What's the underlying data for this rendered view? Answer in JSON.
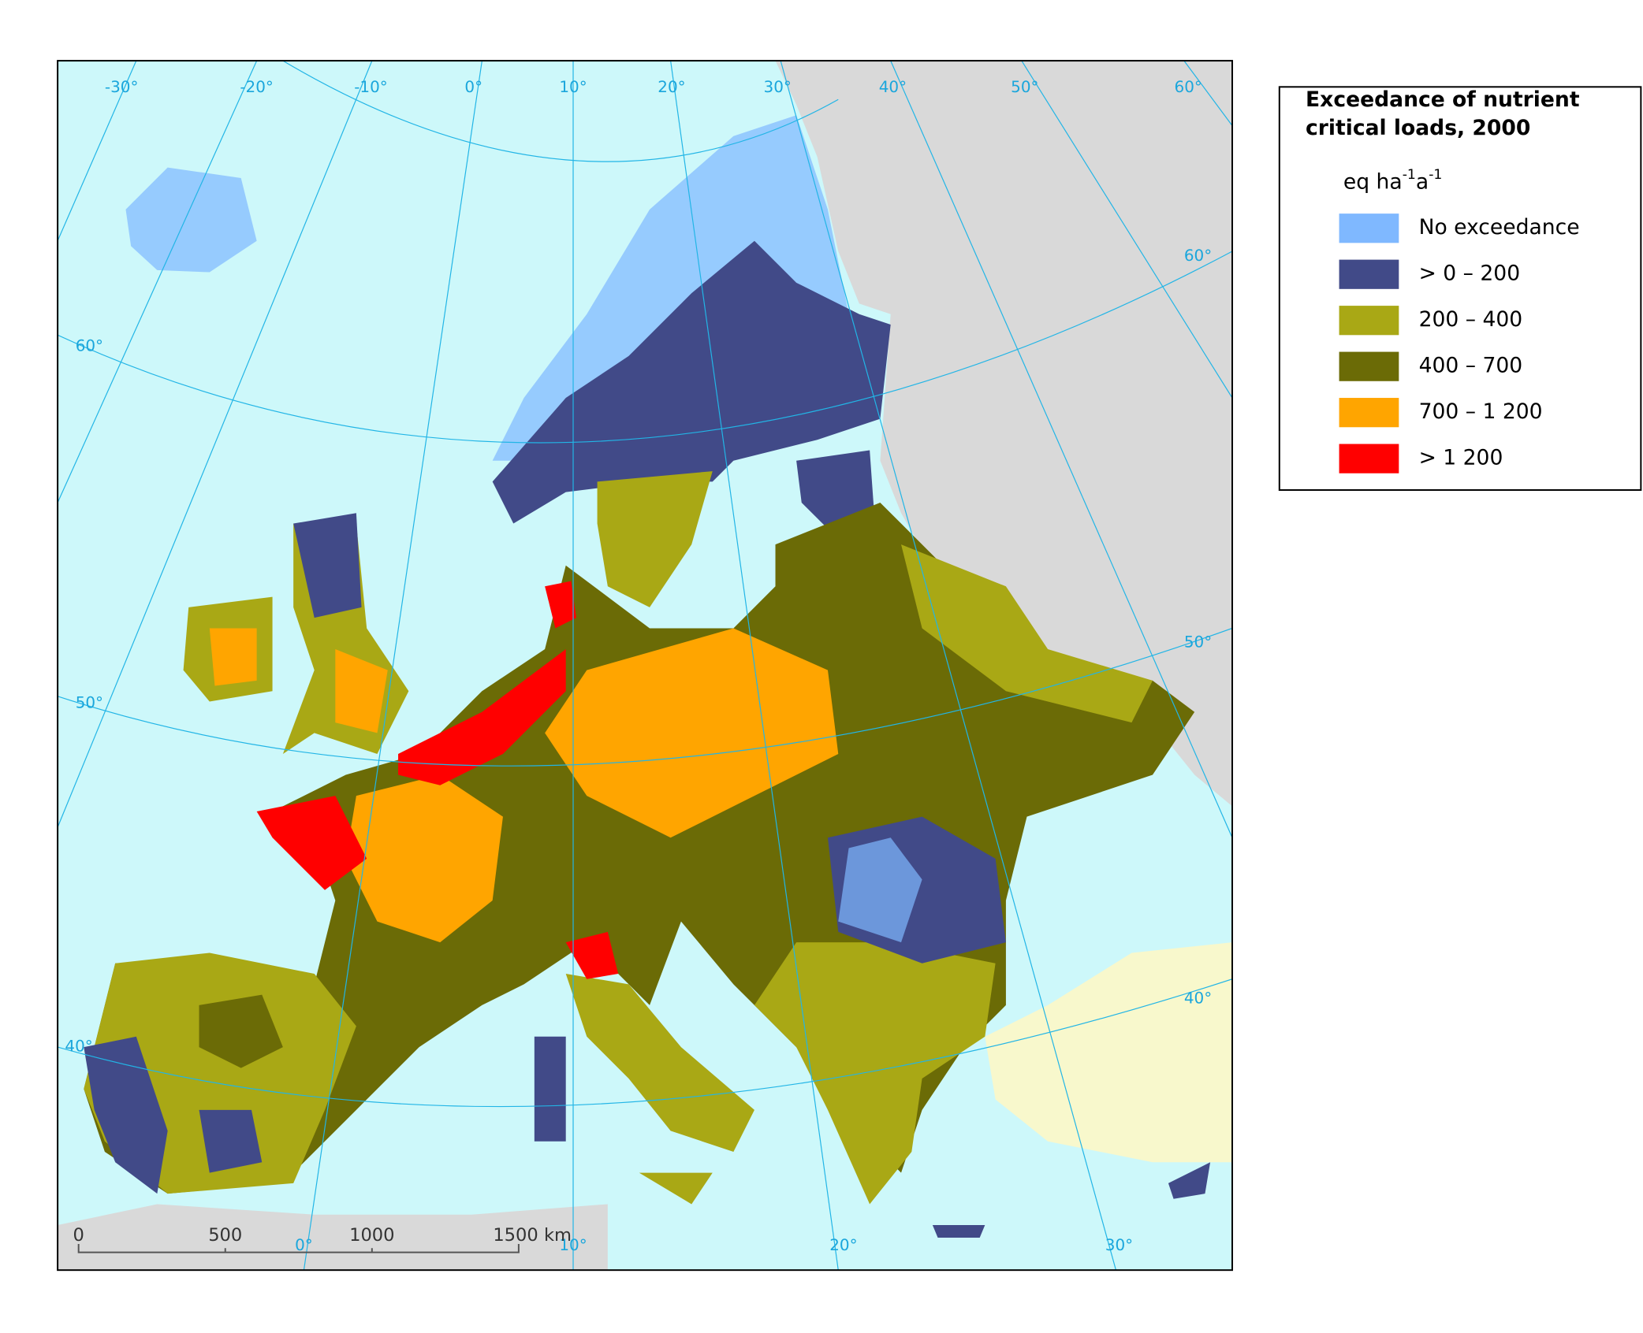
{
  "map": {
    "title_lines": [
      "Exceedance of nutrient",
      "critical loads, 2000"
    ],
    "unit": [
      "eq ha",
      "-1",
      "a",
      "-1"
    ],
    "legend": [
      {
        "label": "No exceedance",
        "color": "#7fb8ff"
      },
      {
        "label": "> 0 – 200",
        "color": "#414a88"
      },
      {
        "label": "200 – 400",
        "color": "#a9a815"
      },
      {
        "label": "400 – 700",
        "color": "#6b6b06"
      },
      {
        "label": "700 – 1 200",
        "color": "#ffa500"
      },
      {
        "label": "> 1 200",
        "color": "#ff0000"
      }
    ],
    "graticule_labels": {
      "top": [
        "-30°",
        "-20°",
        "-10°",
        "0°",
        "10°",
        "20°",
        "30°",
        "40°",
        "50°",
        "60°"
      ],
      "left": [
        "60°",
        "50°",
        "40°"
      ],
      "right": [
        "60°",
        "50°",
        "40°"
      ],
      "bottom": [
        "0°",
        "10°",
        "20°",
        "30°"
      ]
    },
    "scale_bar": [
      "0",
      "500",
      "1000",
      "1500 km"
    ]
  }
}
